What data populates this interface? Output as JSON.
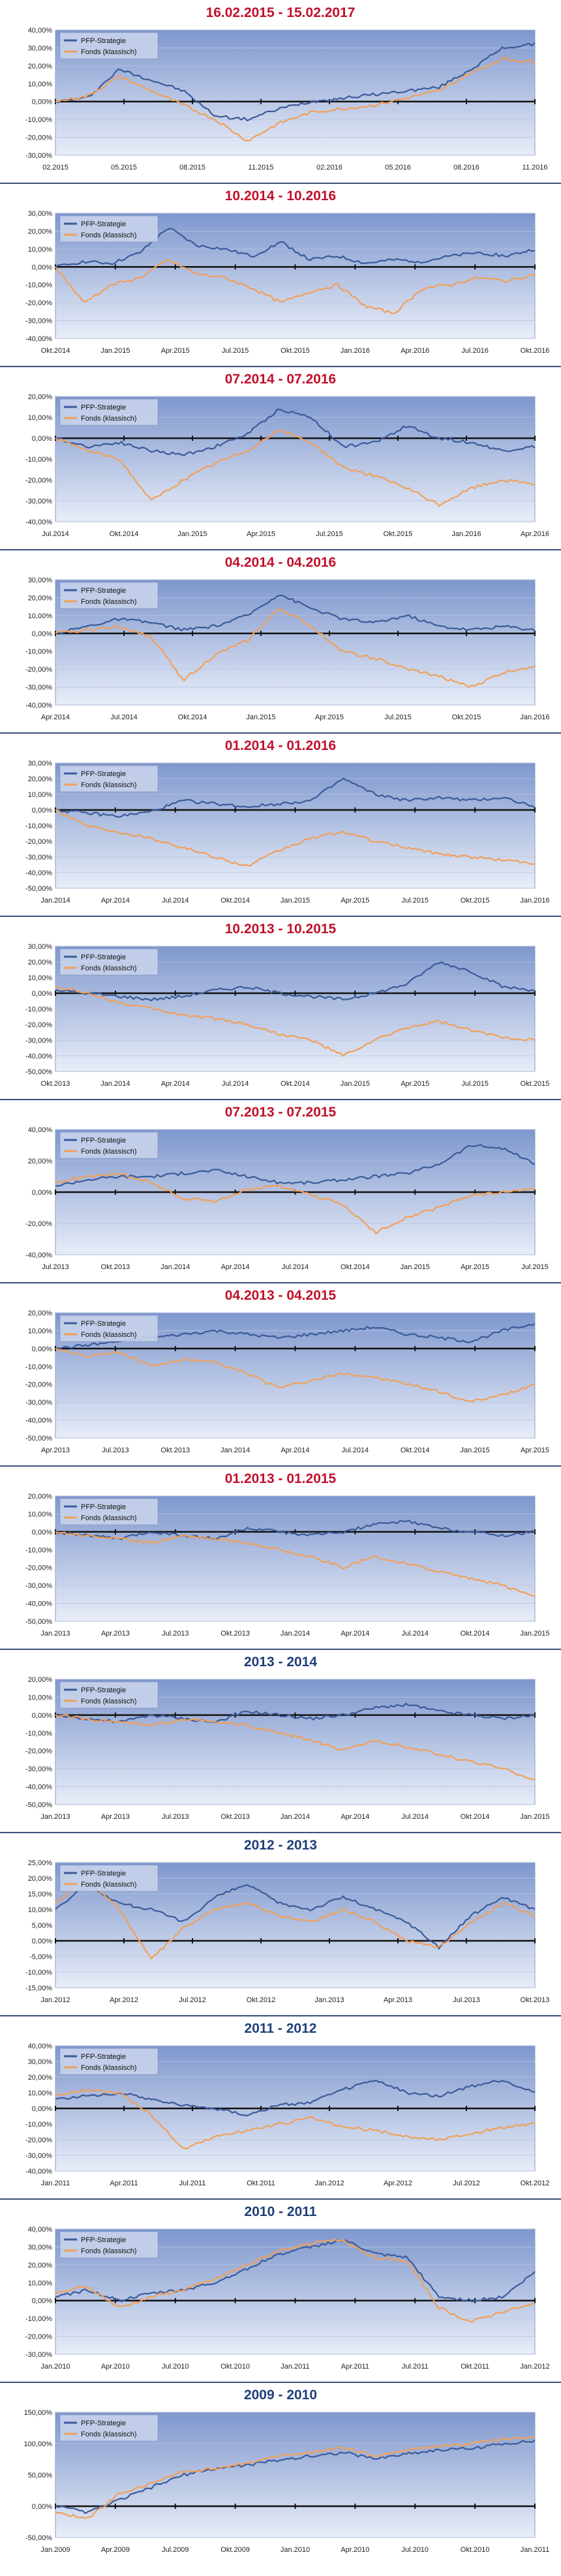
{
  "chart_data": [
    {
      "type": "line",
      "title": "16.02.2015 - 15.02.2017",
      "title_color": "red",
      "yticks": [
        "40,00%",
        "30,00%",
        "20,00%",
        "10,00%",
        "0,00%",
        "-10,00%",
        "-20,00%",
        "-30,00%"
      ],
      "xticks": [
        "02.2015",
        "05.2015",
        "08.2015",
        "11.2015",
        "02.2016",
        "05.2016",
        "08.2016",
        "11.2016"
      ],
      "ylim": [
        -30,
        40
      ],
      "series": [
        {
          "name": "PFP-Strategie",
          "color": "#3b5b9a",
          "values": [
            0,
            2,
            18,
            12,
            6,
            -8,
            -10,
            -4,
            0,
            2,
            4,
            6,
            8,
            18,
            30,
            32
          ]
        },
        {
          "name": "Fonds (klassisch)",
          "color": "#f0a05a",
          "values": [
            0,
            3,
            14,
            6,
            -2,
            -10,
            -22,
            -12,
            -6,
            -4,
            -2,
            2,
            6,
            16,
            24,
            22
          ]
        }
      ]
    },
    {
      "type": "line",
      "title": "10.2014 - 10.2016",
      "title_color": "red",
      "yticks": [
        "30,00%",
        "20,00%",
        "10,00%",
        "0,00%",
        "-10,00%",
        "-20,00%",
        "-30,00%",
        "-40,00%"
      ],
      "xticks": [
        "Okt.2014",
        "Jan.2015",
        "Apr.2015",
        "Jul.2015",
        "Okt.2015",
        "Jan.2016",
        "Apr.2016",
        "Jul.2016",
        "Okt.2016"
      ],
      "ylim": [
        -40,
        30
      ],
      "series": [
        {
          "name": "PFP-Strategie",
          "color": "#3b5b9a",
          "values": [
            0,
            3,
            2,
            8,
            22,
            12,
            10,
            6,
            14,
            4,
            6,
            2,
            4,
            3,
            6,
            8,
            6,
            10
          ]
        },
        {
          "name": "Fonds (klassisch)",
          "color": "#f0a05a",
          "values": [
            0,
            -20,
            -10,
            -6,
            4,
            -4,
            -6,
            -12,
            -20,
            -14,
            -10,
            -22,
            -26,
            -12,
            -10,
            -6,
            -8,
            -4
          ]
        }
      ]
    },
    {
      "type": "line",
      "title": "07.2014 - 07.2016",
      "title_color": "red",
      "yticks": [
        "20,00%",
        "10,00%",
        "0,00%",
        "-10,00%",
        "-20,00%",
        "-30,00%",
        "-40,00%"
      ],
      "xticks": [
        "Jul.2014",
        "Okt.2014",
        "Jan.2015",
        "Apr.2015",
        "Jul.2015",
        "Okt.2015",
        "Jan.2016",
        "Apr.2016"
      ],
      "ylim": [
        -40,
        20
      ],
      "series": [
        {
          "name": "PFP-Strategie",
          "color": "#3b5b9a",
          "values": [
            0,
            -4,
            -2,
            -6,
            -8,
            -4,
            2,
            14,
            10,
            -4,
            -2,
            6,
            0,
            -2,
            -6,
            -4
          ]
        },
        {
          "name": "Fonds (klassisch)",
          "color": "#f0a05a",
          "values": [
            0,
            -6,
            -10,
            -30,
            -20,
            -12,
            -6,
            4,
            -2,
            -14,
            -18,
            -24,
            -32,
            -24,
            -20,
            -22
          ]
        }
      ]
    },
    {
      "type": "line",
      "title": "04.2014 - 04.2016",
      "title_color": "red",
      "yticks": [
        "30,00%",
        "20,00%",
        "10,00%",
        "0,00%",
        "-10,00%",
        "-20,00%",
        "-30,00%",
        "-40,00%"
      ],
      "xticks": [
        "Apr.2014",
        "Jul.2014",
        "Okt.2014",
        "Jan.2015",
        "Apr.2015",
        "Jul.2015",
        "Okt.2015",
        "Jan.2016"
      ],
      "ylim": [
        -40,
        30
      ],
      "series": [
        {
          "name": "PFP-Strategie",
          "color": "#3b5b9a",
          "values": [
            0,
            4,
            8,
            6,
            2,
            4,
            10,
            22,
            14,
            8,
            6,
            10,
            4,
            2,
            4,
            2
          ]
        },
        {
          "name": "Fonds (klassisch)",
          "color": "#f0a05a",
          "values": [
            0,
            2,
            4,
            -2,
            -26,
            -12,
            -4,
            14,
            4,
            -10,
            -14,
            -20,
            -24,
            -30,
            -22,
            -18
          ]
        }
      ]
    },
    {
      "type": "line",
      "title": "01.2014 - 01.2016",
      "title_color": "red",
      "yticks": [
        "30,00%",
        "20,00%",
        "10,00%",
        "0,00%",
        "-10,00%",
        "-20,00%",
        "-30,00%",
        "-40,00%",
        "-50,00%"
      ],
      "xticks": [
        "Jan.2014",
        "Apr.2014",
        "Jul.2014",
        "Okt.2014",
        "Jan.2015",
        "Apr.2015",
        "Jul.2015",
        "Okt.2015",
        "Jan.2016"
      ],
      "ylim": [
        -50,
        30
      ],
      "series": [
        {
          "name": "PFP-Strategie",
          "color": "#3b5b9a",
          "values": [
            0,
            -2,
            -4,
            -1,
            6,
            4,
            2,
            4,
            6,
            20,
            10,
            6,
            8,
            6,
            8,
            2
          ]
        },
        {
          "name": "Fonds (klassisch)",
          "color": "#f0a05a",
          "values": [
            0,
            -10,
            -14,
            -18,
            -24,
            -30,
            -36,
            -26,
            -18,
            -14,
            -20,
            -24,
            -28,
            -30,
            -32,
            -34
          ]
        }
      ]
    },
    {
      "type": "line",
      "title": "10.2013 - 10.2015",
      "title_color": "red",
      "yticks": [
        "30,00%",
        "20,00%",
        "10,00%",
        "0,00%",
        "-10,00%",
        "-20,00%",
        "-30,00%",
        "-40,00%",
        "-50,00%"
      ],
      "xticks": [
        "Okt.2013",
        "Jan.2014",
        "Apr.2014",
        "Jul.2014",
        "Okt.2014",
        "Jan.2015",
        "Apr.2015",
        "Jul.2015",
        "Okt.2015"
      ],
      "ylim": [
        -50,
        30
      ],
      "series": [
        {
          "name": "PFP-Strategie",
          "color": "#3b5b9a",
          "values": [
            2,
            0,
            -2,
            -4,
            -2,
            2,
            4,
            0,
            -2,
            -4,
            0,
            6,
            20,
            14,
            4,
            2
          ]
        },
        {
          "name": "Fonds (klassisch)",
          "color": "#f0a05a",
          "values": [
            4,
            0,
            -6,
            -10,
            -14,
            -16,
            -20,
            -26,
            -30,
            -40,
            -30,
            -22,
            -18,
            -24,
            -28,
            -30
          ]
        }
      ]
    },
    {
      "type": "line",
      "title": "07.2013 - 07.2015",
      "title_color": "red",
      "yticks": [
        "40,00%",
        "20,00%",
        "0,00%",
        "-20,00%",
        "-40,00%"
      ],
      "xticks": [
        "Jul.2013",
        "Okt.2013",
        "Jan.2014",
        "Apr.2014",
        "Jul.2014",
        "Okt.2014",
        "Jan.2015",
        "Apr.2015",
        "Jul.2015"
      ],
      "ylim": [
        -40,
        40
      ],
      "series": [
        {
          "name": "PFP-Strategie",
          "color": "#3b5b9a",
          "values": [
            4,
            8,
            10,
            10,
            12,
            14,
            10,
            6,
            6,
            8,
            10,
            12,
            18,
            30,
            28,
            18
          ]
        },
        {
          "name": "Fonds (klassisch)",
          "color": "#f0a05a",
          "values": [
            6,
            10,
            12,
            6,
            -4,
            -6,
            2,
            4,
            -2,
            -8,
            -26,
            -16,
            -10,
            -2,
            0,
            2
          ]
        }
      ]
    },
    {
      "type": "line",
      "title": "04.2013 - 04.2015",
      "title_color": "red",
      "yticks": [
        "20,00%",
        "10,00%",
        "0,00%",
        "-10,00%",
        "-20,00%",
        "-30,00%",
        "-40,00%",
        "-50,00%"
      ],
      "xticks": [
        "Apr.2013",
        "Jul.2013",
        "Okt.2013",
        "Jan.2014",
        "Apr.2014",
        "Jul.2014",
        "Okt.2014",
        "Jan.2015",
        "Apr.2015"
      ],
      "ylim": [
        -50,
        20
      ],
      "series": [
        {
          "name": "PFP-Strategie",
          "color": "#3b5b9a",
          "values": [
            0,
            2,
            4,
            6,
            8,
            10,
            8,
            6,
            8,
            10,
            12,
            8,
            6,
            4,
            10,
            14
          ]
        },
        {
          "name": "Fonds (klassisch)",
          "color": "#f0a05a",
          "values": [
            0,
            -4,
            -2,
            -10,
            -6,
            -8,
            -14,
            -22,
            -18,
            -14,
            -16,
            -20,
            -24,
            -30,
            -26,
            -20
          ]
        }
      ]
    },
    {
      "type": "line",
      "title": "01.2013 - 01.2015",
      "title_color": "red",
      "yticks": [
        "20,00%",
        "10,00%",
        "0,00%",
        "-10,00%",
        "-20,00%",
        "-30,00%",
        "-40,00%",
        "-50,00%"
      ],
      "xticks": [
        "Jan.2013",
        "Apr.2013",
        "Jul.2013",
        "Okt.2013",
        "Jan.2014",
        "Apr.2014",
        "Jul.2014",
        "Okt.2014",
        "Jan.2015"
      ],
      "ylim": [
        -50,
        20
      ],
      "series": [
        {
          "name": "PFP-Strategie",
          "color": "#3b5b9a",
          "values": [
            0,
            -2,
            -4,
            0,
            -2,
            -4,
            2,
            0,
            -2,
            0,
            4,
            6,
            2,
            0,
            -2,
            0
          ]
        },
        {
          "name": "Fonds (klassisch)",
          "color": "#f0a05a",
          "values": [
            0,
            -2,
            -4,
            -6,
            -2,
            -4,
            -6,
            -10,
            -14,
            -20,
            -14,
            -18,
            -22,
            -26,
            -30,
            -36
          ]
        }
      ]
    },
    {
      "type": "line",
      "title": "2013 - 2014",
      "title_color": "blue",
      "yticks": [
        "20,00%",
        "10,00%",
        "0,00%",
        "-10,00%",
        "-20,00%",
        "-30,00%",
        "-40,00%",
        "-50,00%"
      ],
      "xticks": [
        "Jan.2013",
        "Apr.2013",
        "Jul.2013",
        "Okt.2013",
        "Jan.2014",
        "Apr.2014",
        "Jul.2014",
        "Okt.2014",
        "Jan.2015"
      ],
      "ylim": [
        -50,
        20
      ],
      "series": [
        {
          "name": "PFP-Strategie",
          "color": "#3b5b9a",
          "values": [
            0,
            -2,
            -4,
            0,
            -2,
            -4,
            2,
            0,
            -2,
            0,
            4,
            6,
            2,
            0,
            -2,
            0
          ]
        },
        {
          "name": "Fonds (klassisch)",
          "color": "#f0a05a",
          "values": [
            0,
            -2,
            -4,
            -6,
            -2,
            -4,
            -6,
            -10,
            -14,
            -20,
            -14,
            -18,
            -22,
            -26,
            -30,
            -36
          ]
        }
      ]
    },
    {
      "type": "line",
      "title": "2012 - 2013",
      "title_color": "blue",
      "yticks": [
        "25,00%",
        "20,00%",
        "15,00%",
        "10,00%",
        "5,00%",
        "0,00%",
        "-5,00%",
        "-10,00%",
        "-15,00%"
      ],
      "xticks": [
        "Jan.2012",
        "Apr.2012",
        "Jul.2012",
        "Okt.2012",
        "Jan.2013",
        "Apr.2013",
        "Jul.2013",
        "Okt.2013"
      ],
      "ylim": [
        -15,
        25
      ],
      "series": [
        {
          "name": "PFP-Strategie",
          "color": "#3b5b9a",
          "values": [
            10,
            18,
            12,
            10,
            6,
            14,
            18,
            12,
            10,
            14,
            10,
            6,
            -2,
            8,
            14,
            10
          ]
        },
        {
          "name": "Fonds (klassisch)",
          "color": "#f0a05a",
          "values": [
            12,
            20,
            10,
            -6,
            4,
            10,
            12,
            8,
            6,
            10,
            6,
            0,
            -2,
            6,
            12,
            8
          ]
        }
      ]
    },
    {
      "type": "line",
      "title": "2011 - 2012",
      "title_color": "blue",
      "yticks": [
        "40,00%",
        "30,00%",
        "20,00%",
        "10,00%",
        "0,00%",
        "-10,00%",
        "-20,00%",
        "-30,00%",
        "-40,00%"
      ],
      "xticks": [
        "Jan.2011",
        "Apr.2011",
        "Jul.2011",
        "Okt.2011",
        "Jan.2012",
        "Apr.2012",
        "Jul.2012",
        "Okt.2012"
      ],
      "ylim": [
        -40,
        40
      ],
      "series": [
        {
          "name": "PFP-Strategie",
          "color": "#3b5b9a",
          "values": [
            6,
            8,
            10,
            6,
            2,
            0,
            -4,
            2,
            4,
            12,
            18,
            10,
            8,
            14,
            18,
            10
          ]
        },
        {
          "name": "Fonds (klassisch)",
          "color": "#f0a05a",
          "values": [
            8,
            12,
            10,
            -4,
            -26,
            -18,
            -14,
            -10,
            -6,
            -12,
            -14,
            -18,
            -20,
            -16,
            -12,
            -10
          ]
        }
      ]
    },
    {
      "type": "line",
      "title": "2010 - 2011",
      "title_color": "blue",
      "yticks": [
        "40,00%",
        "30,00%",
        "20,00%",
        "10,00%",
        "0,00%",
        "-10,00%",
        "-20,00%",
        "-30,00%"
      ],
      "xticks": [
        "Jan.2010",
        "Apr.2010",
        "Jul.2010",
        "Okt.2010",
        "Jan.2011",
        "Apr.2011",
        "Jul.2011",
        "Okt.2011",
        "Jan.2012"
      ],
      "ylim": [
        -30,
        40
      ],
      "series": [
        {
          "name": "PFP-Strategie",
          "color": "#3b5b9a",
          "values": [
            2,
            6,
            0,
            4,
            6,
            10,
            18,
            26,
            30,
            34,
            26,
            24,
            2,
            0,
            2,
            16
          ]
        },
        {
          "name": "Fonds (klassisch)",
          "color": "#f0a05a",
          "values": [
            4,
            8,
            -4,
            2,
            6,
            12,
            20,
            28,
            32,
            34,
            24,
            22,
            -4,
            -12,
            -6,
            -2
          ]
        }
      ]
    },
    {
      "type": "line",
      "title": "2009 - 2010",
      "title_color": "blue",
      "yticks": [
        "150,00%",
        "100,00%",
        "50,00%",
        "0,00%",
        "-50,00%"
      ],
      "xticks": [
        "Jan.2009",
        "Apr.2009",
        "Jul.2009",
        "Okt.2009",
        "Jan.2010",
        "Apr.2010",
        "Jul.2010",
        "Okt.2010",
        "Jan.2011"
      ],
      "ylim": [
        -50,
        150
      ],
      "series": [
        {
          "name": "PFP-Strategie",
          "color": "#3b5b9a",
          "values": [
            0,
            -10,
            10,
            30,
            50,
            60,
            66,
            74,
            80,
            86,
            76,
            84,
            90,
            92,
            100,
            104
          ]
        },
        {
          "name": "Fonds (klassisch)",
          "color": "#f0a05a",
          "values": [
            -10,
            -20,
            20,
            36,
            56,
            60,
            70,
            80,
            86,
            94,
            80,
            90,
            96,
            100,
            108,
            110
          ]
        }
      ]
    }
  ]
}
